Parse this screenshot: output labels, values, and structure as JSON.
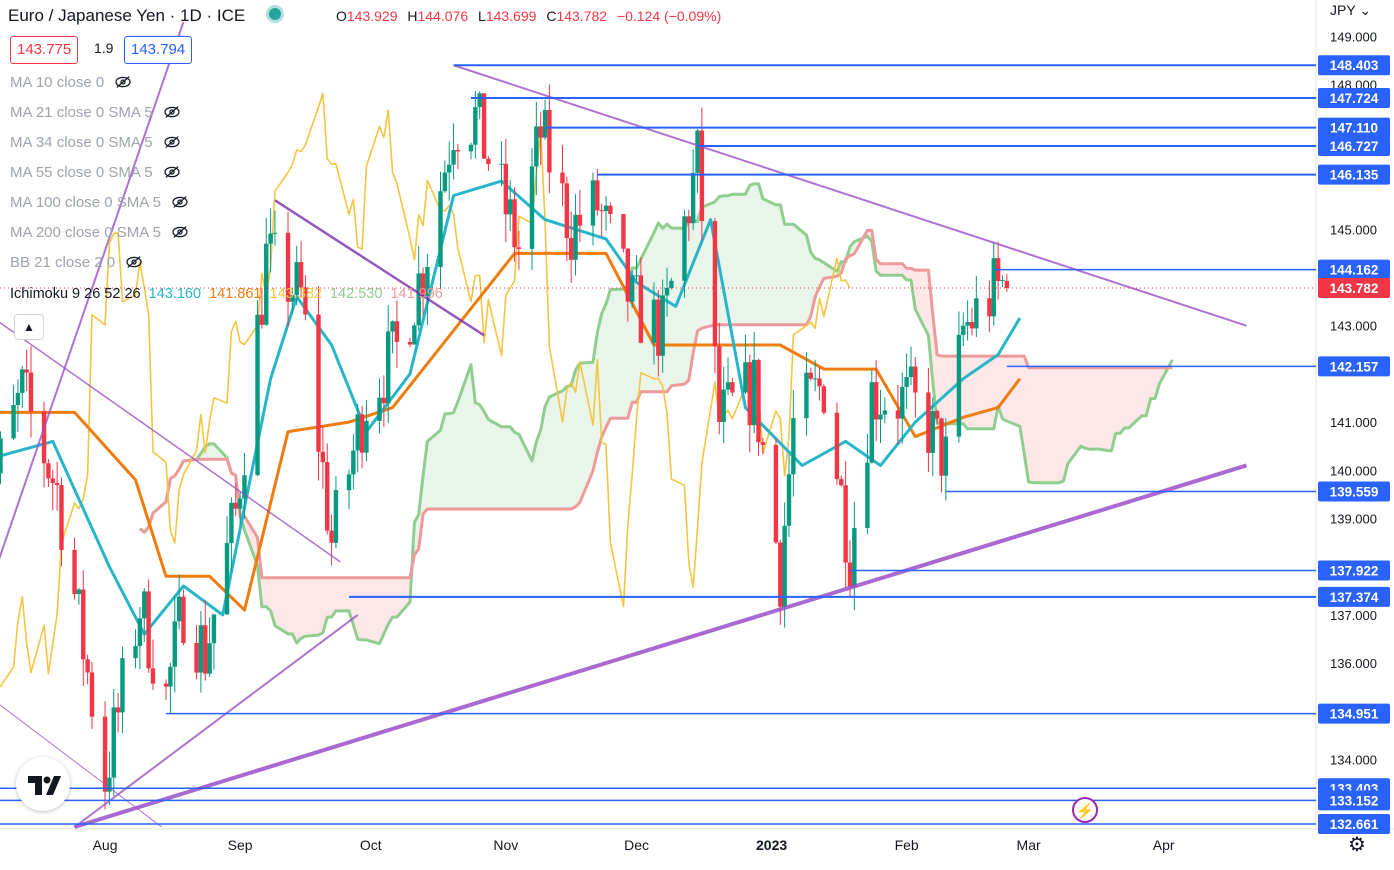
{
  "header": {
    "title": "Euro / Japanese Yen · 1D · ICE",
    "ohlc": {
      "o_label": "O",
      "o": "143.929",
      "h_label": "H",
      "h": "144.076",
      "l_label": "L",
      "l": "143.699",
      "c_label": "C",
      "c": "143.782",
      "change": "−0.124 (−0.09%)"
    },
    "bid": "143.775",
    "spread": "1.9",
    "ask": "143.794",
    "currency": "JPY"
  },
  "indicators": [
    "MA 10 close 0",
    "MA 21 close 0 SMA 5",
    "MA 34 close 0 SMA 5",
    "MA 55 close 0 SMA 5",
    "MA 100 close 0 SMA 5",
    "MA 200 close 0 SMA 5",
    "BB 21 close 2 0"
  ],
  "ichimoku": {
    "label": "Ichimoku 9 26 52 26",
    "values": [
      "143.160",
      "141.861",
      "143.382",
      "142.530",
      "141.996"
    ],
    "colors": [
      "#26b5c9",
      "#ef7c0c",
      "#f5c542",
      "#8fce8f",
      "#ef9a9a"
    ]
  },
  "colors": {
    "up": "#089981",
    "down": "#f23645",
    "level": "#2962ff",
    "trend": "#9c4fc9",
    "tenkan": "#26b5c9",
    "kijun": "#ef7c0c",
    "chikou": "#f5c542",
    "spanA": "#8fce8f",
    "spanB": "#ef9a9a",
    "cloud_up": "rgba(76,175,80,0.12)",
    "cloud_down": "rgba(242,54,69,0.12)"
  },
  "icons": [
    "eye-off-icon",
    "chevron-up-icon",
    "tradingview-logo-icon",
    "lightning-icon",
    "gear-icon"
  ],
  "chart_data": {
    "type": "candlestick",
    "ylim": [
      132.6,
      149.3
    ],
    "y_ticks": [
      "149.000",
      "148.000",
      "145.000",
      "143.000",
      "141.000",
      "140.000",
      "139.000",
      "137.000",
      "136.000",
      "134.000"
    ],
    "x_ticks": [
      "Aug",
      "Sep",
      "Oct",
      "Nov",
      "Dec",
      "2023",
      "Feb",
      "Mar",
      "Apr"
    ],
    "levels": [
      {
        "value": 148.403,
        "label": "148.403",
        "from": "2022-10-20"
      },
      {
        "value": 147.724,
        "label": "147.724",
        "from": "2022-10-24"
      },
      {
        "value": 147.11,
        "label": "147.110",
        "from": "2022-11-10"
      },
      {
        "value": 146.727,
        "label": "146.727",
        "from": "2022-12-15"
      },
      {
        "value": 146.135,
        "label": "146.135",
        "from": "2022-11-22"
      },
      {
        "value": 144.162,
        "label": "144.162",
        "from": "2023-02-21"
      },
      {
        "value": 142.157,
        "label": "142.157",
        "from": "2023-02-24"
      },
      {
        "value": 139.559,
        "label": "139.559",
        "from": "2023-02-10"
      },
      {
        "value": 137.922,
        "label": "137.922",
        "from": "2023-01-19"
      },
      {
        "value": 137.374,
        "label": "137.374",
        "from": "2022-09-26"
      },
      {
        "value": 134.951,
        "label": "134.951",
        "from": "2022-08-15"
      },
      {
        "value": 133.403,
        "label": "133.403",
        "from": "2022-07-01"
      },
      {
        "value": 133.152,
        "label": "133.152",
        "from": "2022-07-01"
      },
      {
        "value": 132.661,
        "label": "132.661",
        "from": "2022-07-01"
      }
    ],
    "current_price": {
      "value": 143.782,
      "label": "143.782"
    },
    "trendlines": [
      {
        "x1": "2022-10-20",
        "y1": 148.403,
        "x2": "2023-04-20",
        "y2": 143.0,
        "width": 2
      },
      {
        "x1": "2022-07-25",
        "y1": 132.6,
        "x2": "2023-04-20",
        "y2": 140.1,
        "width": 4
      },
      {
        "x1": "2022-07-25",
        "y1": 132.6,
        "x2": "2022-09-28",
        "y2": 137.0,
        "width": 2
      },
      {
        "x1": "2022-09-09",
        "y1": 145.6,
        "x2": "2022-10-27",
        "y2": 142.8,
        "width": 2.5
      },
      {
        "x1": "2022-07-01",
        "y1": 143.5,
        "x2": "2022-09-24",
        "y2": 138.1,
        "width": 1.5
      },
      {
        "x1": "2022-07-01",
        "y1": 135.6,
        "x2": "2022-08-14",
        "y2": 132.6,
        "width": 1
      },
      {
        "x1": "2022-07-01",
        "y1": 136.4,
        "x2": "2022-08-19",
        "y2": 149.3,
        "width": 2
      }
    ],
    "anchors": {
      "dates": [
        "2022-08-01",
        "2022-09-01",
        "2022-10-01",
        "2022-11-01",
        "2022-12-01",
        "2023-01-01",
        "2023-02-01",
        "2023-03-01",
        "2023-04-01"
      ],
      "closes": [
        134.3,
        139.7,
        141.3,
        145.8,
        143.6,
        140.1,
        141.3,
        142.5,
        143.8
      ],
      "path": [
        [
          "2022-07-04",
          139.0
        ],
        [
          "2022-07-13",
          141.6
        ],
        [
          "2022-07-21",
          139.6
        ],
        [
          "2022-08-01",
          133.6
        ],
        [
          "2022-08-09",
          137.2
        ],
        [
          "2022-08-15",
          135.3
        ],
        [
          "2022-08-19",
          137.2
        ],
        [
          "2022-08-24",
          136.2
        ],
        [
          "2022-08-31",
          139.1
        ],
        [
          "2022-09-07",
          144.4
        ],
        [
          "2022-09-15",
          143.6
        ],
        [
          "2022-09-22",
          138.5
        ],
        [
          "2022-09-30",
          141.5
        ],
        [
          "2022-10-07",
          142.5
        ],
        [
          "2022-10-13",
          144.2
        ],
        [
          "2022-10-20",
          147.2
        ],
        [
          "2022-10-25",
          147.3
        ],
        [
          "2022-11-04",
          144.6
        ],
        [
          "2022-11-09",
          147.0
        ],
        [
          "2022-11-16",
          145.0
        ],
        [
          "2022-11-22",
          145.5
        ],
        [
          "2022-11-30",
          143.4
        ],
        [
          "2022-12-07",
          142.9
        ],
        [
          "2022-12-15",
          146.4
        ],
        [
          "2022-12-20",
          141.0
        ],
        [
          "2022-12-28",
          141.7
        ],
        [
          "2023-01-03",
          137.9
        ],
        [
          "2023-01-06",
          140.9
        ],
        [
          "2023-01-13",
          141.8
        ],
        [
          "2023-01-19",
          138.3
        ],
        [
          "2023-01-24",
          141.6
        ],
        [
          "2023-02-02",
          141.4
        ],
        [
          "2023-02-06",
          140.9
        ],
        [
          "2023-02-10",
          140.2
        ],
        [
          "2023-02-14",
          142.9
        ],
        [
          "2023-02-21",
          143.7
        ],
        [
          "2023-02-24",
          143.9
        ],
        [
          "2023-02-25",
          143.782
        ]
      ]
    },
    "ichimoku_lines": {
      "kijun": [
        [
          "2022-07-01",
          141.2
        ],
        [
          "2022-07-25",
          141.2
        ],
        [
          "2022-08-08",
          139.8
        ],
        [
          "2022-08-15",
          137.8
        ],
        [
          "2022-08-25",
          137.8
        ],
        [
          "2022-09-02",
          137.1
        ],
        [
          "2022-09-12",
          140.8
        ],
        [
          "2022-09-26",
          141.0
        ],
        [
          "2022-10-06",
          141.3
        ],
        [
          "2022-10-20",
          142.9
        ],
        [
          "2022-11-03",
          144.5
        ],
        [
          "2022-11-24",
          144.5
        ],
        [
          "2022-12-05",
          142.6
        ],
        [
          "2022-12-20",
          142.6
        ],
        [
          "2023-01-03",
          142.6
        ],
        [
          "2023-01-13",
          142.1
        ],
        [
          "2023-01-25",
          142.1
        ],
        [
          "2023-02-03",
          140.7
        ],
        [
          "2023-02-14",
          141.1
        ],
        [
          "2023-02-22",
          141.3
        ],
        [
          "2023-02-27",
          141.9
        ]
      ],
      "tenkan": [
        [
          "2022-07-01",
          141.0
        ],
        [
          "2022-07-08",
          140.3
        ],
        [
          "2022-07-20",
          140.6
        ],
        [
          "2022-08-02",
          138.0
        ],
        [
          "2022-08-10",
          136.6
        ],
        [
          "2022-08-19",
          137.6
        ],
        [
          "2022-08-28",
          137.0
        ],
        [
          "2022-09-08",
          141.9
        ],
        [
          "2022-09-14",
          143.6
        ],
        [
          "2022-09-22",
          142.6
        ],
        [
          "2022-09-30",
          140.8
        ],
        [
          "2022-10-10",
          142.0
        ],
        [
          "2022-10-20",
          145.7
        ],
        [
          "2022-10-31",
          146.0
        ],
        [
          "2022-11-10",
          145.2
        ],
        [
          "2022-11-24",
          144.8
        ],
        [
          "2022-12-01",
          143.9
        ],
        [
          "2022-12-10",
          143.4
        ],
        [
          "2022-12-18",
          145.2
        ],
        [
          "2022-12-26",
          141.3
        ],
        [
          "2023-01-08",
          140.1
        ],
        [
          "2023-01-18",
          140.6
        ],
        [
          "2023-01-26",
          140.1
        ],
        [
          "2023-02-03",
          141.0
        ],
        [
          "2023-02-14",
          141.9
        ],
        [
          "2023-02-22",
          142.4
        ],
        [
          "2023-02-27",
          143.16
        ]
      ]
    }
  }
}
